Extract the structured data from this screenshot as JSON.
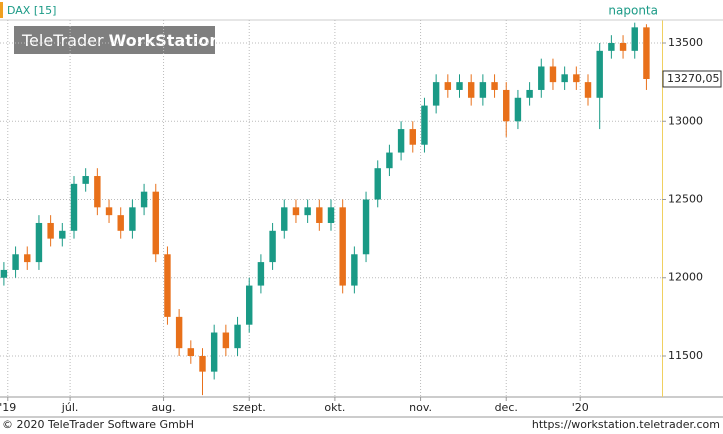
{
  "chart_data": {
    "type": "candlestick",
    "title": "DAX [15]",
    "logo": {
      "light": "TeleTrader",
      "bold": "WorkStation"
    },
    "interval": "naponta",
    "footer_left": "© 2020 TeleTrader Software GmbH",
    "footer_right": "https://workstation.teletrader.com",
    "last_price": {
      "value": 13270.05,
      "label": "13270,05"
    },
    "up_color": "#1a9a86",
    "down_color": "#e8701a",
    "grid": true,
    "xlim": [
      0,
      170
    ],
    "xticks": [
      {
        "value": 2,
        "label": "'19"
      },
      {
        "value": 18,
        "label": "júl."
      },
      {
        "value": 42,
        "label": "aug."
      },
      {
        "value": 64,
        "label": "szept."
      },
      {
        "value": 86,
        "label": "okt."
      },
      {
        "value": 108,
        "label": "nov."
      },
      {
        "value": 130,
        "label": "dec."
      },
      {
        "value": 149,
        "label": "'20"
      }
    ],
    "ylim": [
      11238,
      13647
    ],
    "yticks": [
      11500,
      12000,
      12500,
      13000,
      13500
    ],
    "x": [
      1,
      4,
      7,
      10,
      13,
      16,
      19,
      22,
      25,
      28,
      31,
      34,
      37,
      40,
      43,
      46,
      49,
      52,
      55,
      58,
      61,
      64,
      67,
      70,
      73,
      76,
      79,
      82,
      85,
      88,
      91,
      94,
      97,
      100,
      103,
      106,
      109,
      112,
      115,
      118,
      121,
      124,
      127,
      130,
      133,
      136,
      139,
      142,
      145,
      148,
      151,
      154,
      157,
      160,
      163,
      166
    ],
    "open": [
      12000,
      12050,
      12150,
      12100,
      12350,
      12250,
      12300,
      12600,
      12650,
      12450,
      12400,
      12300,
      12450,
      12550,
      12150,
      11750,
      11550,
      11500,
      11400,
      11650,
      11550,
      11700,
      11950,
      12100,
      12300,
      12450,
      12400,
      12450,
      12350,
      12450,
      11950,
      12150,
      12500,
      12700,
      12800,
      12950,
      12850,
      13100,
      13250,
      13200,
      13250,
      13150,
      13250,
      13200,
      13000,
      13150,
      13200,
      13350,
      13250,
      13300,
      13250,
      13150,
      13450,
      13500,
      13450,
      13600
    ],
    "high": [
      12100,
      12200,
      12200,
      12400,
      12400,
      12350,
      12650,
      12700,
      12700,
      12500,
      12450,
      12500,
      12600,
      12600,
      12200,
      11800,
      11600,
      11550,
      11700,
      11700,
      11750,
      12000,
      12150,
      12350,
      12500,
      12500,
      12500,
      12500,
      12500,
      12500,
      12200,
      12550,
      12750,
      12850,
      13000,
      13000,
      13150,
      13300,
      13300,
      13300,
      13300,
      13300,
      13300,
      13250,
      13200,
      13250,
      13400,
      13400,
      13350,
      13350,
      13300,
      13500,
      13550,
      13550,
      13630,
      13620
    ],
    "low": [
      11950,
      12000,
      12050,
      12050,
      12200,
      12200,
      12250,
      12550,
      12400,
      12350,
      12250,
      12250,
      12400,
      12100,
      11700,
      11500,
      11450,
      11250,
      11350,
      11500,
      11500,
      11650,
      11900,
      12050,
      12250,
      12350,
      12350,
      12300,
      12300,
      11900,
      11900,
      12100,
      12450,
      12650,
      12750,
      12800,
      12800,
      13050,
      13150,
      13150,
      13100,
      13100,
      13150,
      12900,
      12950,
      13100,
      13150,
      13200,
      13200,
      13200,
      13100,
      12950,
      13400,
      13400,
      13400,
      13200
    ],
    "close": [
      12050,
      12150,
      12100,
      12350,
      12250,
      12300,
      12600,
      12650,
      12450,
      12400,
      12300,
      12450,
      12550,
      12150,
      11750,
      11550,
      11500,
      11400,
      11650,
      11550,
      11700,
      11950,
      12100,
      12300,
      12450,
      12400,
      12450,
      12350,
      12450,
      11950,
      12150,
      12500,
      12700,
      12800,
      12950,
      12850,
      13100,
      13250,
      13200,
      13250,
      13150,
      13250,
      13200,
      13000,
      13150,
      13200,
      13350,
      13250,
      13300,
      13250,
      13150,
      13450,
      13500,
      13450,
      13600,
      13270.05
    ]
  }
}
